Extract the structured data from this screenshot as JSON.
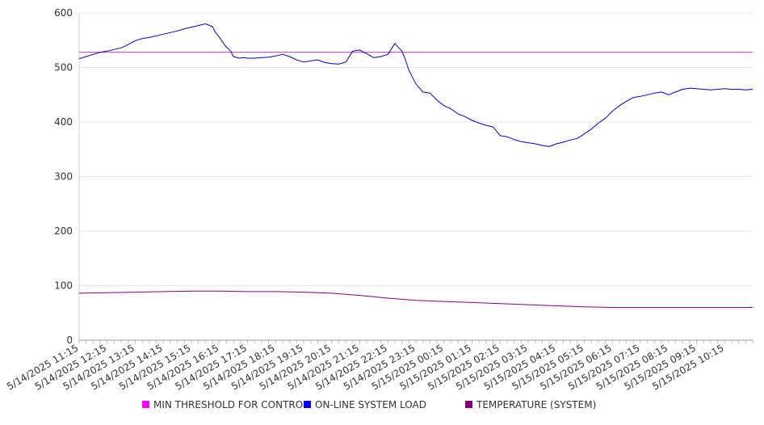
{
  "chart_data": {
    "type": "line",
    "title": "",
    "xlabel": "",
    "ylabel": "",
    "ylim": [
      0,
      600
    ],
    "yticks": [
      0,
      100,
      200,
      300,
      400,
      500,
      600
    ],
    "grid": true,
    "legend_position": "bottom",
    "x_tick_labels": [
      "5/14/2025 11:15",
      "5/14/2025 12:15",
      "5/14/2025 13:15",
      "5/14/2025 14:15",
      "5/14/2025 15:15",
      "5/14/2025 16:15",
      "5/14/2025 17:15",
      "5/14/2025 18:15",
      "5/14/2025 19:15",
      "5/14/2025 20:15",
      "5/14/2025 21:15",
      "5/14/2025 22:15",
      "5/14/2025 23:15",
      "5/15/2025 00:15",
      "5/15/2025 01:15",
      "5/15/2025 02:15",
      "5/15/2025 03:15",
      "5/15/2025 04:15",
      "5/15/2025 05:15",
      "5/15/2025 06:15",
      "5/15/2025 07:15",
      "5/15/2025 08:15",
      "5/15/2025 09:15",
      "5/15/2025 10:15"
    ],
    "x_hours_range": [
      0,
      24
    ],
    "series": [
      {
        "name": "MIN THRESHOLD FOR CONTROL",
        "color": "#ff00ff",
        "line_color": "#b040c0",
        "x": [
          0,
          24
        ],
        "y": [
          528,
          528
        ]
      },
      {
        "name": "ON-LINE SYSTEM LOAD",
        "color": "#0000ff",
        "line_color": "#0000cc",
        "x": [
          0,
          0.25,
          0.5,
          0.75,
          1.0,
          1.25,
          1.5,
          1.75,
          2.0,
          2.25,
          2.5,
          2.75,
          3.0,
          3.25,
          3.5,
          3.75,
          4.0,
          4.25,
          4.5,
          4.75,
          4.85,
          5.0,
          5.2,
          5.4,
          5.5,
          5.7,
          5.85,
          6.0,
          6.25,
          6.5,
          6.75,
          7.0,
          7.25,
          7.5,
          7.75,
          8.0,
          8.25,
          8.5,
          8.75,
          9.0,
          9.25,
          9.5,
          9.75,
          10.0,
          10.25,
          10.5,
          10.75,
          11.0,
          11.25,
          11.5,
          11.6,
          11.75,
          12.0,
          12.25,
          12.5,
          12.75,
          13.0,
          13.25,
          13.5,
          13.75,
          14.0,
          14.25,
          14.5,
          14.75,
          15.0,
          15.25,
          15.5,
          15.75,
          16.0,
          16.25,
          16.5,
          16.75,
          17.0,
          17.25,
          17.5,
          17.75,
          18.0,
          18.25,
          18.5,
          18.75,
          19.0,
          19.25,
          19.5,
          19.75,
          20.0,
          20.25,
          20.5,
          20.75,
          21.0,
          21.25,
          21.5,
          21.75,
          22.0,
          22.25,
          22.5,
          22.75,
          23.0,
          23.25,
          23.5,
          23.75,
          24.0
        ],
        "y": [
          516,
          520,
          524,
          528,
          530,
          533,
          536,
          542,
          549,
          553,
          555,
          558,
          561,
          564,
          567,
          571,
          574,
          577,
          580,
          575,
          565,
          555,
          540,
          530,
          520,
          517,
          518,
          517,
          517,
          518,
          519,
          521,
          524,
          520,
          514,
          510,
          512,
          514,
          509,
          507,
          506,
          510,
          530,
          532,
          525,
          518,
          520,
          524,
          544,
          530,
          518,
          495,
          470,
          455,
          453,
          440,
          430,
          424,
          415,
          410,
          403,
          398,
          394,
          391,
          375,
          373,
          368,
          364,
          362,
          360,
          357,
          355,
          360,
          363,
          367,
          370,
          378,
          387,
          398,
          407,
          420,
          430,
          438,
          445,
          447,
          450,
          453,
          455,
          450,
          455,
          460,
          462,
          461,
          460,
          459,
          460,
          461,
          460,
          460,
          459,
          460
        ]
      },
      {
        "name": "TEMPERATURE (SYSTEM)",
        "color": "#800080",
        "line_color": "#800080",
        "x": [
          0,
          1,
          2,
          3,
          4,
          5,
          6,
          7,
          8,
          9,
          10,
          11,
          12,
          13,
          14,
          15,
          16,
          17,
          18,
          19,
          20,
          21,
          22,
          23,
          24
        ],
        "y": [
          86,
          87,
          88,
          89,
          90,
          90,
          89,
          89,
          88,
          86,
          82,
          77,
          73,
          71,
          69,
          67,
          65,
          63,
          61,
          60,
          60,
          60,
          60,
          60,
          60
        ]
      }
    ]
  }
}
